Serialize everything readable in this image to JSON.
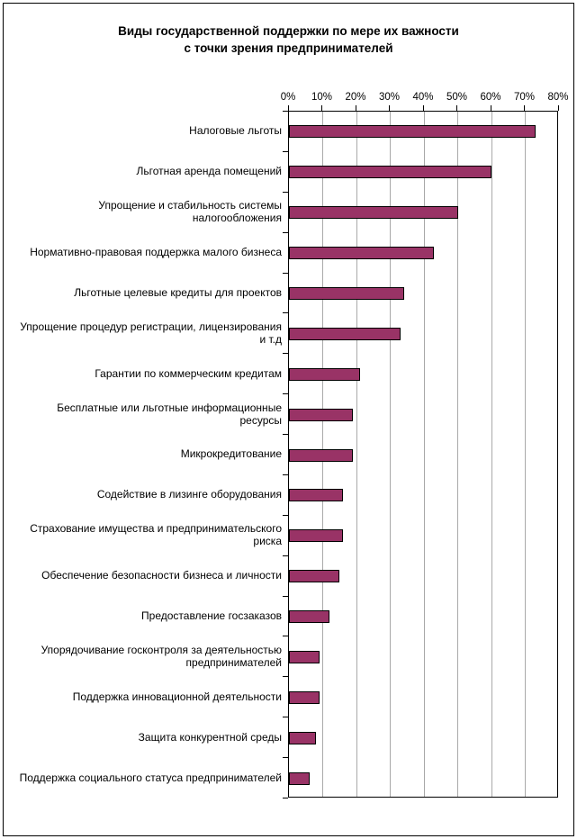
{
  "title": {
    "line1": "Виды государственной поддержки по мере их важности",
    "line2": "с точки зрения предпринимателей"
  },
  "chart_data": {
    "type": "bar",
    "orientation": "horizontal",
    "title": "Виды государственной поддержки по мере их важности с точки зрения предпринимателей",
    "categories": [
      "Налоговые льготы",
      "Льготная аренда помещений",
      "Упрощение и стабильность системы налогообложения",
      "Нормативно-правовая поддержка малого бизнеса",
      "Льготные целевые кредиты для проектов",
      "Упрощение процедур регистрации, лицензирования и т.д",
      "Гарантии по коммерческим кредитам",
      "Бесплатные или льготные информационные ресурсы",
      "Микрокредитование",
      "Содействие в лизинге оборудования",
      "Страхование имущества и предпринимательского риска",
      "Обеспечение безопасности бизнеса и личности",
      "Предоставление госзаказов",
      "Упорядочивание госконтроля за деятельностью предпринимателей",
      "Поддержка инновационной деятельности",
      "Защита конкурентной среды",
      "Поддержка социального статуса предпринимателей"
    ],
    "values": [
      73,
      60,
      50,
      43,
      34,
      33,
      21,
      19,
      19,
      16,
      16,
      15,
      12,
      9,
      9,
      8,
      6
    ],
    "value_unit": "%",
    "x_ticks": [
      "0%",
      "10%",
      "20%",
      "30%",
      "40%",
      "50%",
      "60%",
      "70%",
      "80%"
    ],
    "xlim": [
      0,
      80
    ],
    "xlabel": "",
    "ylabel": "",
    "legend": "none",
    "grid": "vertical",
    "bar_color": "#993366",
    "bar_border_color": "#000000",
    "gridline_color": "#a9a9a9",
    "axis_color": "#000000",
    "text_color": "#000000"
  }
}
